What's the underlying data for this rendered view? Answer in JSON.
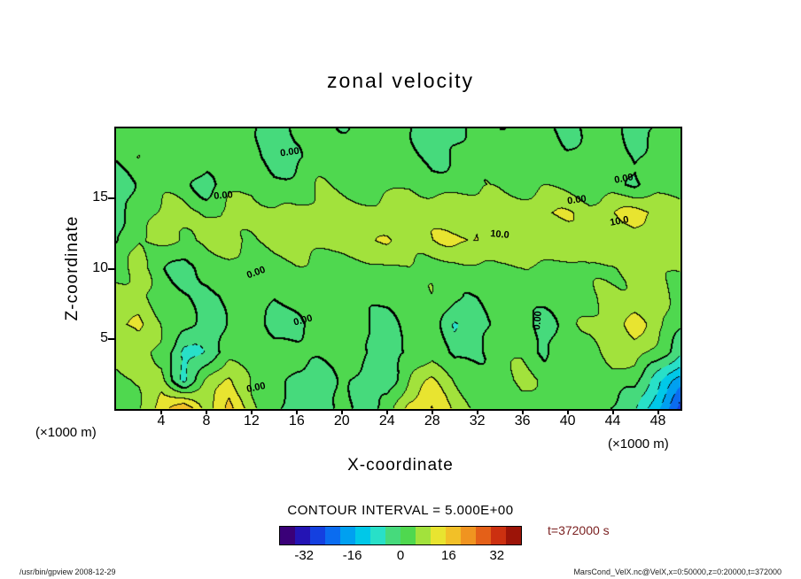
{
  "title": "zonal velocity",
  "axes": {
    "x_label": "X-coordinate",
    "y_label": "Z-coordinate",
    "x_unit": "(×1000 m)",
    "y_unit": "(×1000 m)",
    "x_ticks": [
      4,
      8,
      12,
      16,
      20,
      24,
      28,
      32,
      36,
      40,
      44,
      48
    ],
    "y_ticks": [
      5,
      10,
      15
    ],
    "x_range": [
      0,
      50
    ],
    "z_range": [
      0,
      20
    ]
  },
  "contour": {
    "interval_text": "CONTOUR INTERVAL = 5.000E+00",
    "interval": 5
  },
  "colorbar": {
    "range": [
      -40,
      40
    ],
    "ticks": [
      -32,
      -16,
      0,
      16,
      32
    ],
    "colors": [
      "#3a0078",
      "#2414b4",
      "#1440e0",
      "#0a6cf0",
      "#00a0f0",
      "#00c8e8",
      "#28e0c8",
      "#46da7c",
      "#4fd84f",
      "#a2e23c",
      "#e8e430",
      "#f2c028",
      "#f09420",
      "#e46018",
      "#cc3010",
      "#9c1408"
    ]
  },
  "time_label": "t=372000 s",
  "footer_left": "/usr/bin/gpview  2008-12-29",
  "footer_right": "MarsCond_VelX.nc@VelX,x=0:50000,z=0:20000,t=372000",
  "chart_data": {
    "type": "heatmap",
    "representation": "filled contour map with contour lines (negative contours dashed, zero contour thick)",
    "title": "zonal velocity",
    "xlabel": "X-coordinate (×1000 m)",
    "ylabel": "Z-coordinate (×1000 m)",
    "contour_interval": 5,
    "x": [
      0,
      2,
      4,
      6,
      8,
      10,
      12,
      14,
      16,
      18,
      20,
      22,
      24,
      26,
      28,
      30,
      32,
      34,
      36,
      38,
      40,
      42,
      44,
      46,
      48,
      50
    ],
    "z": [
      0,
      2,
      4,
      6,
      8,
      10,
      12,
      14,
      16,
      18,
      20
    ],
    "grid_order": "rows run z=20 (top) down to z=0 (bottom); columns run x=0 to x=50",
    "grid": [
      [
        2,
        1,
        3,
        2,
        1,
        2,
        1,
        -2,
        1,
        2,
        1,
        2,
        1,
        2,
        -4,
        -2,
        2,
        1,
        2,
        1,
        -1,
        2,
        1,
        -2,
        1,
        2
      ],
      [
        1,
        4,
        2,
        3,
        2,
        3,
        2,
        -3,
        -1,
        2,
        3,
        2,
        3,
        2,
        -2,
        1,
        3,
        2,
        3,
        2,
        1,
        3,
        2,
        -1,
        2,
        1
      ],
      [
        -2,
        2,
        3,
        2,
        -2,
        3,
        4,
        2,
        3,
        4,
        3,
        2,
        3,
        4,
        3,
        4,
        3,
        4,
        3,
        4,
        3,
        2,
        3,
        -2,
        2,
        3
      ],
      [
        -1,
        3,
        5,
        6,
        5,
        6,
        7,
        6,
        5,
        6,
        7,
        8,
        7,
        8,
        9,
        8,
        9,
        8,
        9,
        10,
        9,
        8,
        10,
        12,
        10,
        7
      ],
      [
        -1,
        5,
        6,
        5,
        6,
        7,
        6,
        7,
        6,
        7,
        8,
        9,
        10,
        8,
        9,
        10,
        11,
        9,
        8,
        9,
        10,
        9,
        8,
        9,
        8,
        6
      ],
      [
        4,
        5,
        1,
        -2,
        2,
        3,
        2,
        3,
        4,
        3,
        2,
        3,
        4,
        5,
        4,
        3,
        4,
        5,
        4,
        3,
        4,
        5,
        4,
        5,
        6,
        5
      ],
      [
        6,
        7,
        3,
        1,
        -2,
        2,
        3,
        -1,
        2,
        3,
        2,
        1,
        2,
        3,
        4,
        2,
        1,
        3,
        2,
        3,
        2,
        4,
        6,
        7,
        5,
        3
      ],
      [
        10,
        12,
        5,
        1,
        -3,
        2,
        3,
        -3,
        -1,
        2,
        3,
        1,
        -2,
        2,
        4,
        -5,
        -3,
        2,
        3,
        -2,
        2,
        5,
        9,
        12,
        7,
        1
      ],
      [
        8,
        9,
        3,
        -7,
        -4,
        2,
        4,
        2,
        1,
        2,
        4,
        2,
        -4,
        1,
        3,
        -3,
        1,
        3,
        4,
        -1,
        2,
        3,
        7,
        9,
        4,
        -5
      ],
      [
        3,
        5,
        8,
        -6,
        4,
        12,
        5,
        2,
        -2,
        -3,
        2,
        -4,
        -2,
        6,
        10,
        5,
        2,
        3,
        5,
        4,
        2,
        1,
        3,
        2,
        -8,
        -18
      ],
      [
        2,
        4,
        14,
        19,
        8,
        16,
        6,
        2,
        -3,
        -2,
        1,
        -3,
        2,
        12,
        16,
        9,
        3,
        2,
        4,
        3,
        2,
        1,
        -1,
        -4,
        -14,
        -26
      ]
    ],
    "contour_labels": [
      {
        "text": "0.00",
        "x": 15.4,
        "z": 18.3,
        "rot": -8
      },
      {
        "text": "0.00",
        "x": 9.5,
        "z": 15.2,
        "rot": -5
      },
      {
        "text": "0.00",
        "x": 45.0,
        "z": 16.4,
        "rot": -10
      },
      {
        "text": "0.00",
        "x": 40.8,
        "z": 14.9,
        "rot": -8
      },
      {
        "text": "10.0",
        "x": 44.6,
        "z": 13.4,
        "rot": -10
      },
      {
        "text": "10.0",
        "x": 34.0,
        "z": 12.4,
        "rot": 5
      },
      {
        "text": "0.00",
        "x": 12.4,
        "z": 9.7,
        "rot": -20
      },
      {
        "text": "0.00",
        "x": 16.6,
        "z": 6.3,
        "rot": -15
      },
      {
        "text": "0.00",
        "x": 37.4,
        "z": 6.3,
        "rot": -85
      },
      {
        "text": "0.00",
        "x": 12.4,
        "z": 1.5,
        "rot": -12
      }
    ]
  }
}
